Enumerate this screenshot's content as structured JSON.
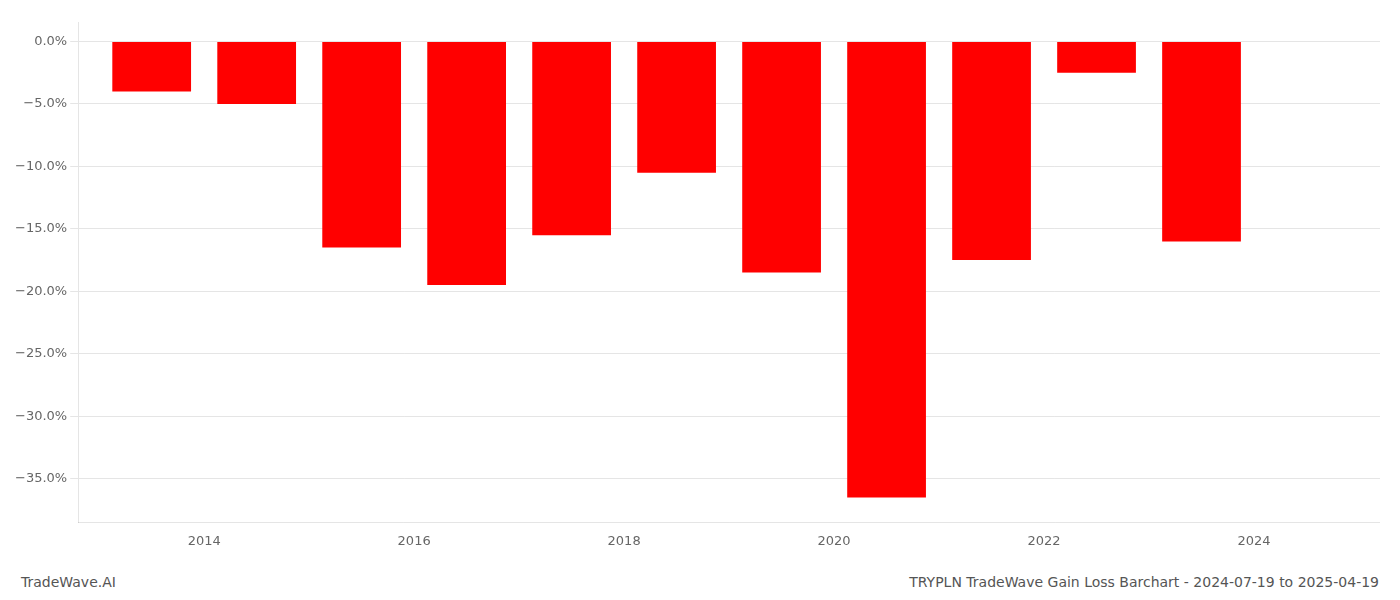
{
  "chart_data": {
    "type": "bar",
    "title": "TRYPLN TradeWave Gain Loss Barchart - 2024-07-19 to 2025-04-19",
    "annotation": "TradeWave.AI",
    "x": [
      2013.5,
      2014.5,
      2015.5,
      2016.5,
      2017.5,
      2018.5,
      2019.5,
      2020.5,
      2021.5,
      2022.5,
      2023.5
    ],
    "values": [
      -4.0,
      -5.0,
      -16.5,
      -19.5,
      -15.5,
      -10.5,
      -18.5,
      -36.5,
      -17.5,
      -2.5,
      -16.0
    ],
    "color": "#ff0000",
    "xlim": [
      2012.8,
      2025.2
    ],
    "xticks": [
      2014,
      2016,
      2018,
      2020,
      2022,
      2024
    ],
    "ylim": [
      -38.5,
      1.5
    ],
    "yticks": [
      {
        "value": 0.0,
        "label": "0.0%"
      },
      {
        "value": -5.0,
        "label": "−5.0%"
      },
      {
        "value": -10.0,
        "label": "−10.0%"
      },
      {
        "value": -15.0,
        "label": "−15.0%"
      },
      {
        "value": -20.0,
        "label": "−20.0%"
      },
      {
        "value": -25.0,
        "label": "−25.0%"
      },
      {
        "value": -30.0,
        "label": "−30.0%"
      },
      {
        "value": -35.0,
        "label": "−35.0%"
      }
    ],
    "grid": true
  }
}
